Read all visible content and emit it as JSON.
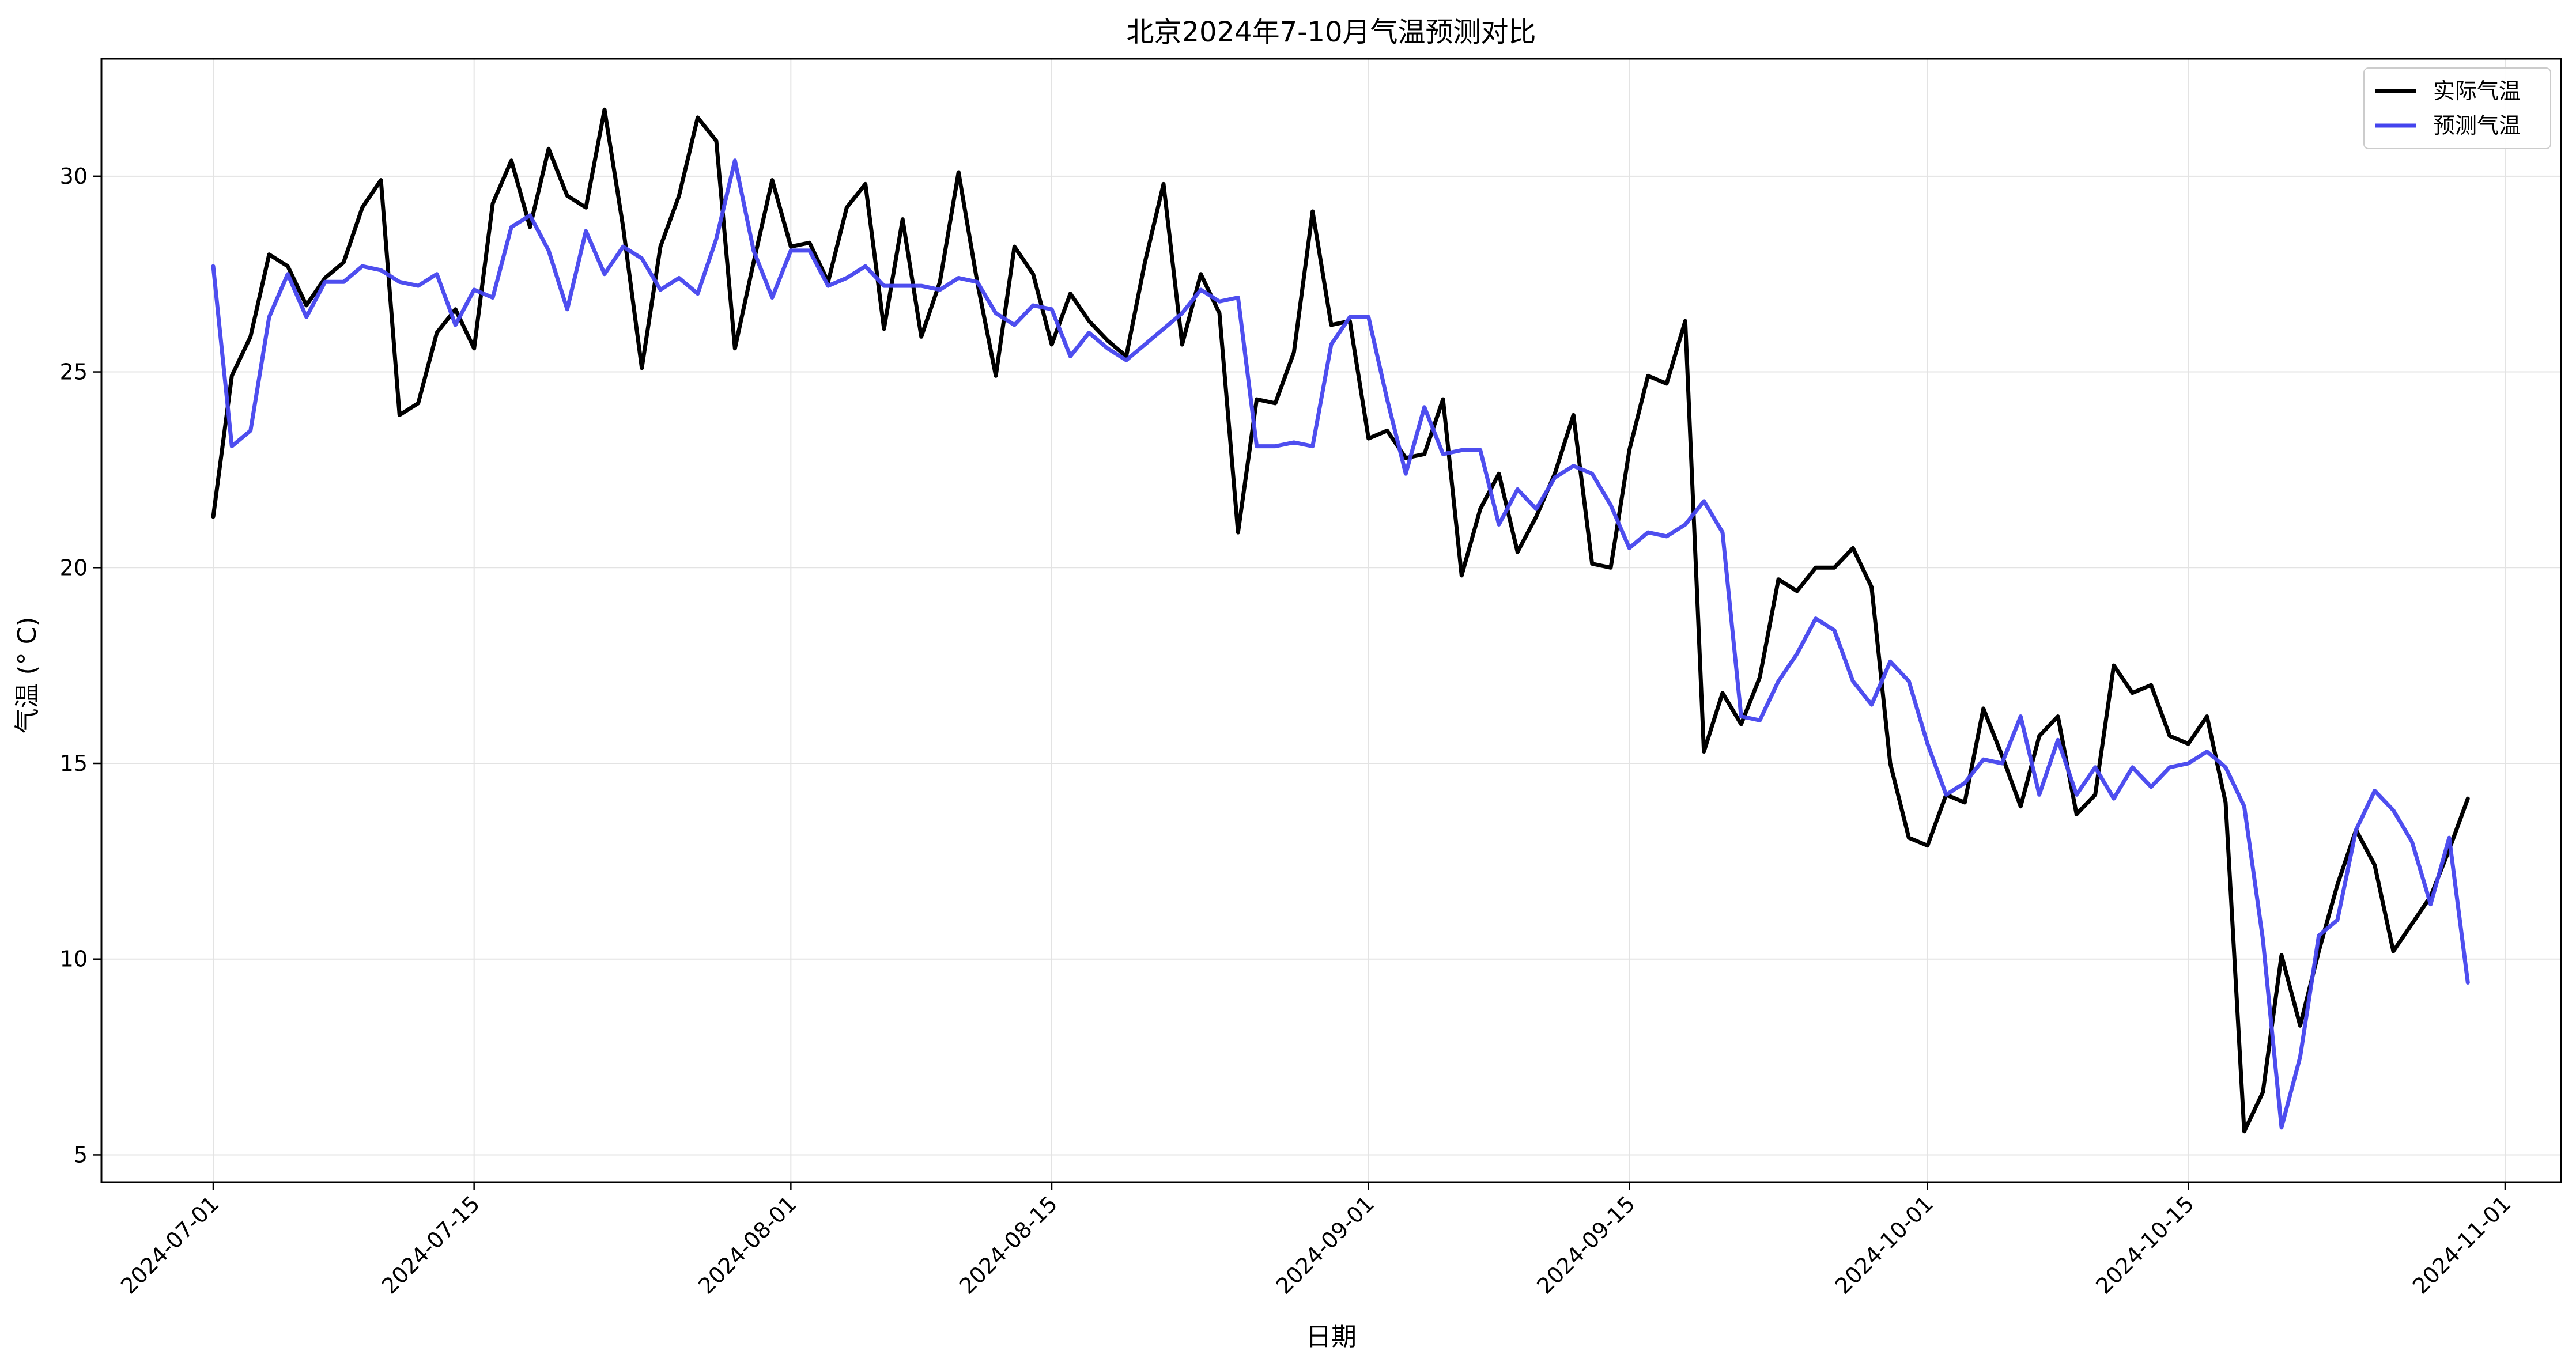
{
  "chart_data": {
    "type": "line",
    "title": "北京2024年7-10月气温预测对比",
    "xlabel": "日期",
    "ylabel": "气温 (° C)",
    "x_start": "2024-07-01",
    "xlim": [
      "2024-06-25",
      "2024-11-04"
    ],
    "ylim": [
      4.3,
      33.0
    ],
    "xticks": [
      "2024-07-01",
      "2024-07-15",
      "2024-08-01",
      "2024-08-15",
      "2024-09-01",
      "2024-09-15",
      "2024-10-01",
      "2024-10-15",
      "2024-11-01"
    ],
    "yticks": [
      5,
      10,
      15,
      20,
      25,
      30
    ],
    "grid": true,
    "legend_position": "top-right",
    "series": [
      {
        "name": "实际气温",
        "color": "#000000",
        "values": [
          21.3,
          24.9,
          25.9,
          28.0,
          27.7,
          26.7,
          27.4,
          27.8,
          29.2,
          29.9,
          23.9,
          24.2,
          26.0,
          26.6,
          25.6,
          29.3,
          30.4,
          28.7,
          30.7,
          29.5,
          29.2,
          31.7,
          28.7,
          25.1,
          28.2,
          29.5,
          31.5,
          30.9,
          25.6,
          27.8,
          29.9,
          28.2,
          28.3,
          27.3,
          29.2,
          29.8,
          26.1,
          28.9,
          25.9,
          27.3,
          30.1,
          27.3,
          24.9,
          28.2,
          27.5,
          25.7,
          27.0,
          26.3,
          25.8,
          25.4,
          27.8,
          29.8,
          25.7,
          27.5,
          26.5,
          20.9,
          24.3,
          24.2,
          25.5,
          29.1,
          26.2,
          26.3,
          23.3,
          23.5,
          22.8,
          22.9,
          24.3,
          19.8,
          21.5,
          22.4,
          20.4,
          21.3,
          22.4,
          23.9,
          20.1,
          20.0,
          23.0,
          24.9,
          24.7,
          26.3,
          15.3,
          16.8,
          16.0,
          17.2,
          19.7,
          19.4,
          20.0,
          20.0,
          20.5,
          19.5,
          15.0,
          13.1,
          12.9,
          14.2,
          14.0,
          16.4,
          15.2,
          13.9,
          15.7,
          16.2,
          13.7,
          14.2,
          17.5,
          16.8,
          17.0,
          15.7,
          15.5,
          16.2,
          14.0,
          5.6,
          6.6,
          10.1,
          8.3,
          10.2,
          11.9,
          13.3,
          12.4,
          10.2,
          10.9,
          11.6,
          12.8,
          14.1
        ]
      },
      {
        "name": "预测气温",
        "color": "#4444ee",
        "values": [
          27.7,
          23.1,
          23.5,
          26.4,
          27.5,
          26.4,
          27.3,
          27.3,
          27.7,
          27.6,
          27.3,
          27.2,
          27.5,
          26.2,
          27.1,
          26.9,
          28.7,
          29.0,
          28.1,
          26.6,
          28.6,
          27.5,
          28.2,
          27.9,
          27.1,
          27.4,
          27.0,
          28.4,
          30.4,
          28.1,
          26.9,
          28.1,
          28.1,
          27.2,
          27.4,
          27.7,
          27.2,
          27.2,
          27.2,
          27.1,
          27.4,
          27.3,
          26.5,
          26.2,
          26.7,
          26.6,
          25.4,
          26.0,
          25.6,
          25.3,
          25.7,
          26.1,
          26.5,
          27.1,
          26.8,
          26.9,
          23.1,
          23.1,
          23.2,
          23.1,
          25.7,
          26.4,
          26.4,
          24.3,
          22.4,
          24.1,
          22.9,
          23.0,
          23.0,
          21.1,
          22.0,
          21.5,
          22.3,
          22.6,
          22.4,
          21.6,
          20.5,
          20.9,
          20.8,
          21.1,
          21.7,
          20.9,
          16.2,
          16.1,
          17.1,
          17.8,
          18.7,
          18.4,
          17.1,
          16.5,
          17.6,
          17.1,
          15.5,
          14.2,
          14.5,
          15.1,
          15.0,
          16.2,
          14.2,
          15.6,
          14.2,
          14.9,
          14.1,
          14.9,
          14.4,
          14.9,
          15.0,
          15.3,
          14.9,
          13.9,
          10.5,
          5.7,
          7.5,
          10.6,
          11.0,
          13.3,
          14.3,
          13.8,
          13.0,
          11.4,
          13.1,
          9.4
        ]
      }
    ]
  }
}
